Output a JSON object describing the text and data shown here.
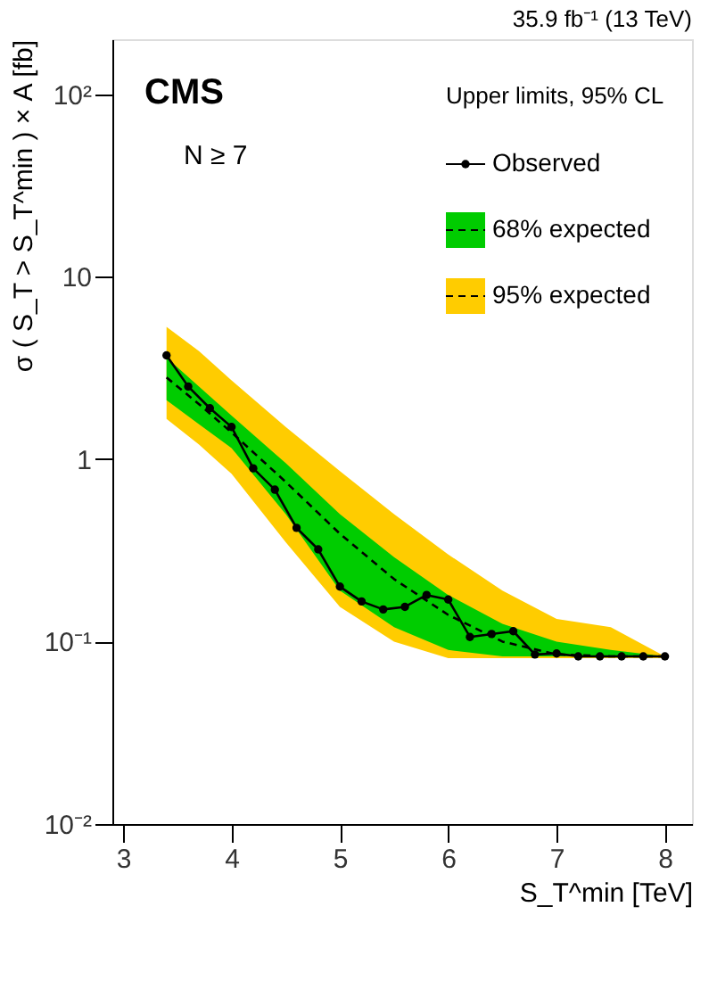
{
  "chart_data": {
    "type": "line",
    "title": "35.9 fb⁻¹ (13 TeV)",
    "xlabel": "S_T^min [TeV]",
    "ylabel": "σ ( S_T > S_T^min ) × A [fb]",
    "legend_title": "Upper limits, 95% CL",
    "legend": "top right",
    "annotations": [
      "CMS",
      "N ≥ 7"
    ],
    "log": true,
    "grid": false,
    "xlim": [
      2.9,
      8.25
    ],
    "xticks": [
      3,
      4,
      5,
      6,
      7,
      8
    ],
    "ylim": [
      0.01,
      200
    ],
    "yticks": [
      {
        "value": 0.01,
        "label": "10⁻²"
      },
      {
        "value": 0.1,
        "label": "10⁻¹"
      },
      1,
      10,
      {
        "value": 100,
        "label": "10²"
      }
    ],
    "series": [
      {
        "name": "Observed",
        "color": "#000000",
        "marker": "circle",
        "line_style": "solid",
        "x": [
          3.4,
          3.6,
          3.8,
          4.0,
          4.2,
          4.4,
          4.6,
          4.8,
          5.0,
          5.2,
          5.4,
          5.6,
          5.8,
          6.0,
          6.2,
          6.4,
          6.6,
          6.8,
          7.0,
          7.2,
          7.4,
          7.6,
          7.8,
          8.0
        ],
        "values": [
          3.7,
          2.5,
          1.9,
          1.5,
          0.89,
          0.68,
          0.42,
          0.32,
          0.2,
          0.166,
          0.15,
          0.155,
          0.18,
          0.17,
          0.106,
          0.11,
          0.114,
          0.085,
          0.086,
          0.083,
          0.083,
          0.083,
          0.083,
          0.083
        ]
      },
      {
        "name": "68% expected",
        "color": "#00cc00",
        "x": [
          3.4,
          3.7,
          4.0,
          4.5,
          5.0,
          5.5,
          6.0,
          6.5,
          7.0,
          7.5,
          8.0
        ],
        "values": [
          null,
          null,
          null,
          null,
          null,
          null,
          null,
          null,
          null,
          null,
          null
        ],
        "lower": [
          2.1,
          1.55,
          1.15,
          0.5,
          0.19,
          0.12,
          0.09,
          0.083,
          0.083,
          0.083,
          0.083
        ],
        "upper": [
          3.6,
          2.5,
          1.73,
          0.95,
          0.5,
          0.29,
          0.18,
          0.125,
          0.1,
          0.09,
          0.083
        ]
      },
      {
        "name": "95% expected",
        "color": "#ffcc00",
        "x": [
          3.4,
          3.7,
          4.0,
          4.5,
          5.0,
          5.5,
          6.0,
          6.5,
          7.0,
          7.5,
          8.0
        ],
        "values": [
          null,
          null,
          null,
          null,
          null,
          null,
          null,
          null,
          null,
          null,
          null
        ],
        "lower": [
          1.66,
          1.2,
          0.83,
          0.35,
          0.155,
          0.1,
          0.081,
          0.081,
          0.081,
          0.081,
          0.081
        ],
        "upper": [
          5.3,
          3.9,
          2.7,
          1.5,
          0.86,
          0.5,
          0.3,
          0.19,
          0.133,
          0.12,
          0.083
        ]
      },
      {
        "color": "#000000",
        "line_style": "dashed",
        "x": [
          3.4,
          3.7,
          4.0,
          4.5,
          5.0,
          5.5,
          6.0,
          6.5,
          7.0,
          7.5,
          8.0
        ],
        "values": [
          2.8,
          2.0,
          1.4,
          0.75,
          0.39,
          0.22,
          0.14,
          0.1,
          0.085,
          0.083,
          0.083
        ]
      }
    ]
  }
}
